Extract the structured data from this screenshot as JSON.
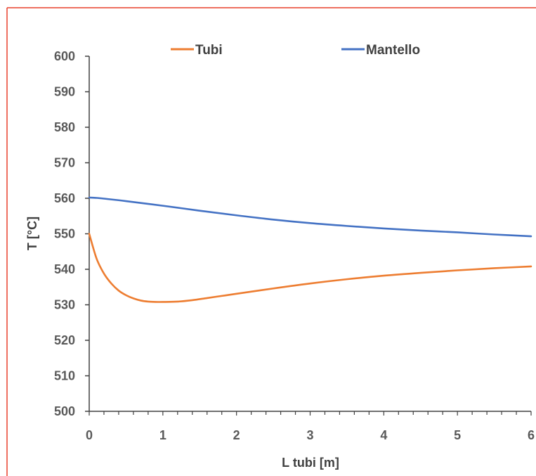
{
  "colors": {
    "frame": "#e8412c",
    "axis": "#404040",
    "tubi": "#ed7d31",
    "mantello": "#4472c4"
  },
  "chart_data": {
    "type": "line",
    "xlabel": "L tubi [m]",
    "ylabel": "T [°C]",
    "xlim": [
      0,
      6
    ],
    "ylim": [
      500,
      600
    ],
    "xticks": [
      0,
      1,
      2,
      3,
      4,
      5,
      6
    ],
    "yticks": [
      500,
      510,
      520,
      530,
      540,
      550,
      560,
      570,
      580,
      590,
      600
    ],
    "grid": false,
    "legend_position": "top",
    "series": [
      {
        "name": "Tubi",
        "color": "#ed7d31",
        "x": [
          0,
          0.1,
          0.2,
          0.3,
          0.4,
          0.5,
          0.6,
          0.7,
          0.8,
          0.9,
          1.0,
          1.2,
          1.4,
          1.6,
          1.8,
          2.0,
          2.5,
          3.0,
          3.5,
          4.0,
          4.5,
          5.0,
          5.5,
          6.0
        ],
        "y": [
          550.0,
          543.0,
          538.8,
          536.0,
          534.0,
          532.7,
          531.8,
          531.2,
          530.9,
          530.8,
          530.8,
          530.9,
          531.3,
          531.9,
          532.5,
          533.1,
          534.6,
          536.0,
          537.2,
          538.2,
          539.0,
          539.7,
          540.3,
          540.8
        ]
      },
      {
        "name": "Mantello",
        "color": "#4472c4",
        "x": [
          0,
          0.1,
          0.2,
          0.5,
          1.0,
          1.5,
          2.0,
          2.5,
          3.0,
          3.5,
          4.0,
          4.5,
          5.0,
          5.5,
          6.0
        ],
        "y": [
          560.2,
          560.1,
          559.9,
          559.2,
          557.9,
          556.5,
          555.2,
          554.0,
          553.0,
          552.2,
          551.5,
          550.9,
          550.4,
          549.8,
          549.3
        ]
      }
    ]
  }
}
